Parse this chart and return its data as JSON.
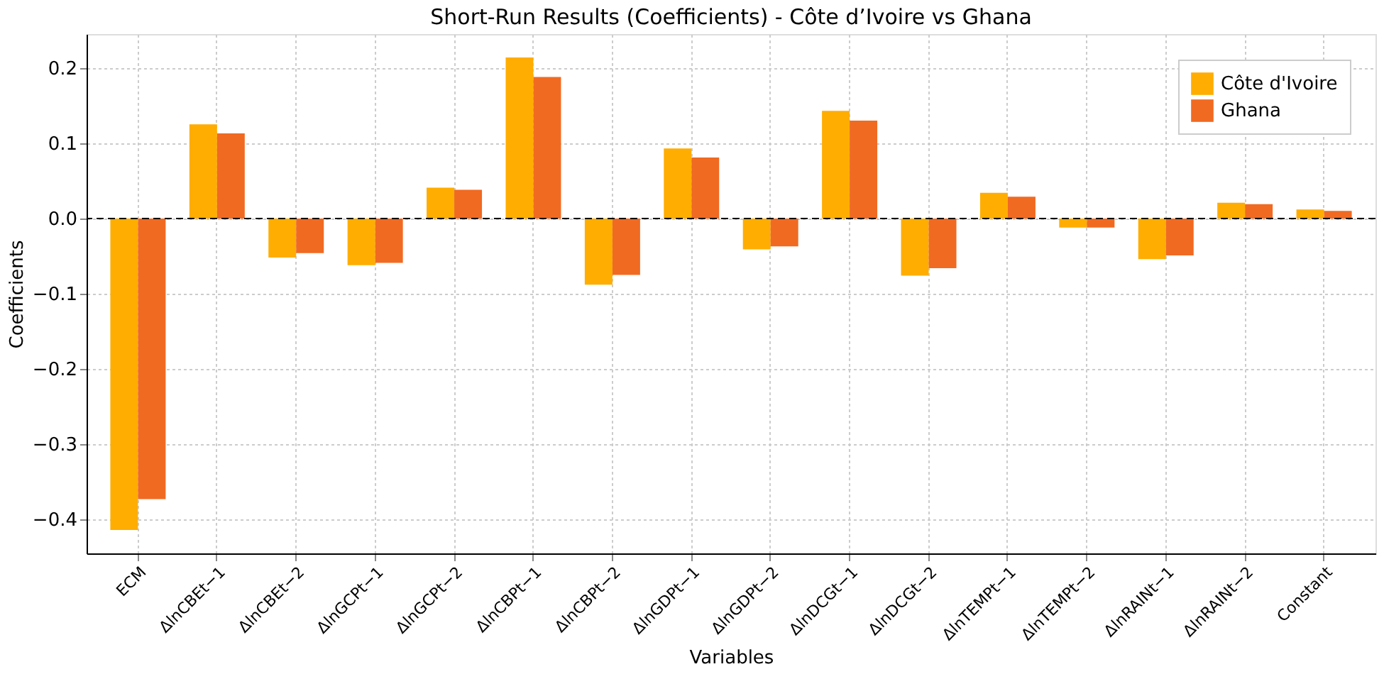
{
  "chart_data": {
    "type": "bar",
    "title": "Short-Run Results (Coefficients) - Côte d’Ivoire vs Ghana",
    "xlabel": "Variables",
    "ylabel": "Coefficients",
    "categories": [
      "ECM",
      "ΔlnCBEt−1",
      "ΔlnCBEt−2",
      "ΔlnGCPt−1",
      "ΔlnGCPt−2",
      "ΔlnCBPt−1",
      "ΔlnCBPt−2",
      "ΔlnGDPt−1",
      "ΔlnGDPt−2",
      "ΔlnDCGt−1",
      "ΔlnDCGt−2",
      "ΔlnTEMPt−1",
      "ΔlnTEMPt−2",
      "ΔlnRAINt−1",
      "ΔlnRAINt−2",
      "Constant"
    ],
    "series": [
      {
        "name": "Côte d'Ivoire",
        "color": "#ffad00",
        "values": [
          -0.414,
          0.125,
          -0.052,
          -0.062,
          0.041,
          0.214,
          -0.088,
          0.093,
          -0.041,
          0.143,
          -0.076,
          0.034,
          -0.012,
          -0.054,
          0.021,
          0.012
        ]
      },
      {
        "name": "Ghana",
        "color": "#f06a22",
        "values": [
          -0.373,
          0.113,
          -0.046,
          -0.059,
          0.038,
          0.188,
          -0.075,
          0.081,
          -0.037,
          0.13,
          -0.066,
          0.029,
          -0.012,
          -0.049,
          0.019,
          0.01
        ]
      }
    ],
    "ylim": [
      -0.445,
      0.245
    ],
    "yticks": [
      {
        "value": -0.4,
        "label": "−0.4"
      },
      {
        "value": -0.3,
        "label": "−0.3"
      },
      {
        "value": -0.2,
        "label": "−0.2"
      },
      {
        "value": -0.1,
        "label": "−0.1"
      },
      {
        "value": 0,
        "label": "0.0"
      },
      0.1,
      0.2
    ],
    "ref_lines": [
      {
        "axis": "y",
        "value": 0,
        "color": "#000000",
        "line_style": "dashed"
      }
    ],
    "grid": true,
    "legend": "top right"
  }
}
